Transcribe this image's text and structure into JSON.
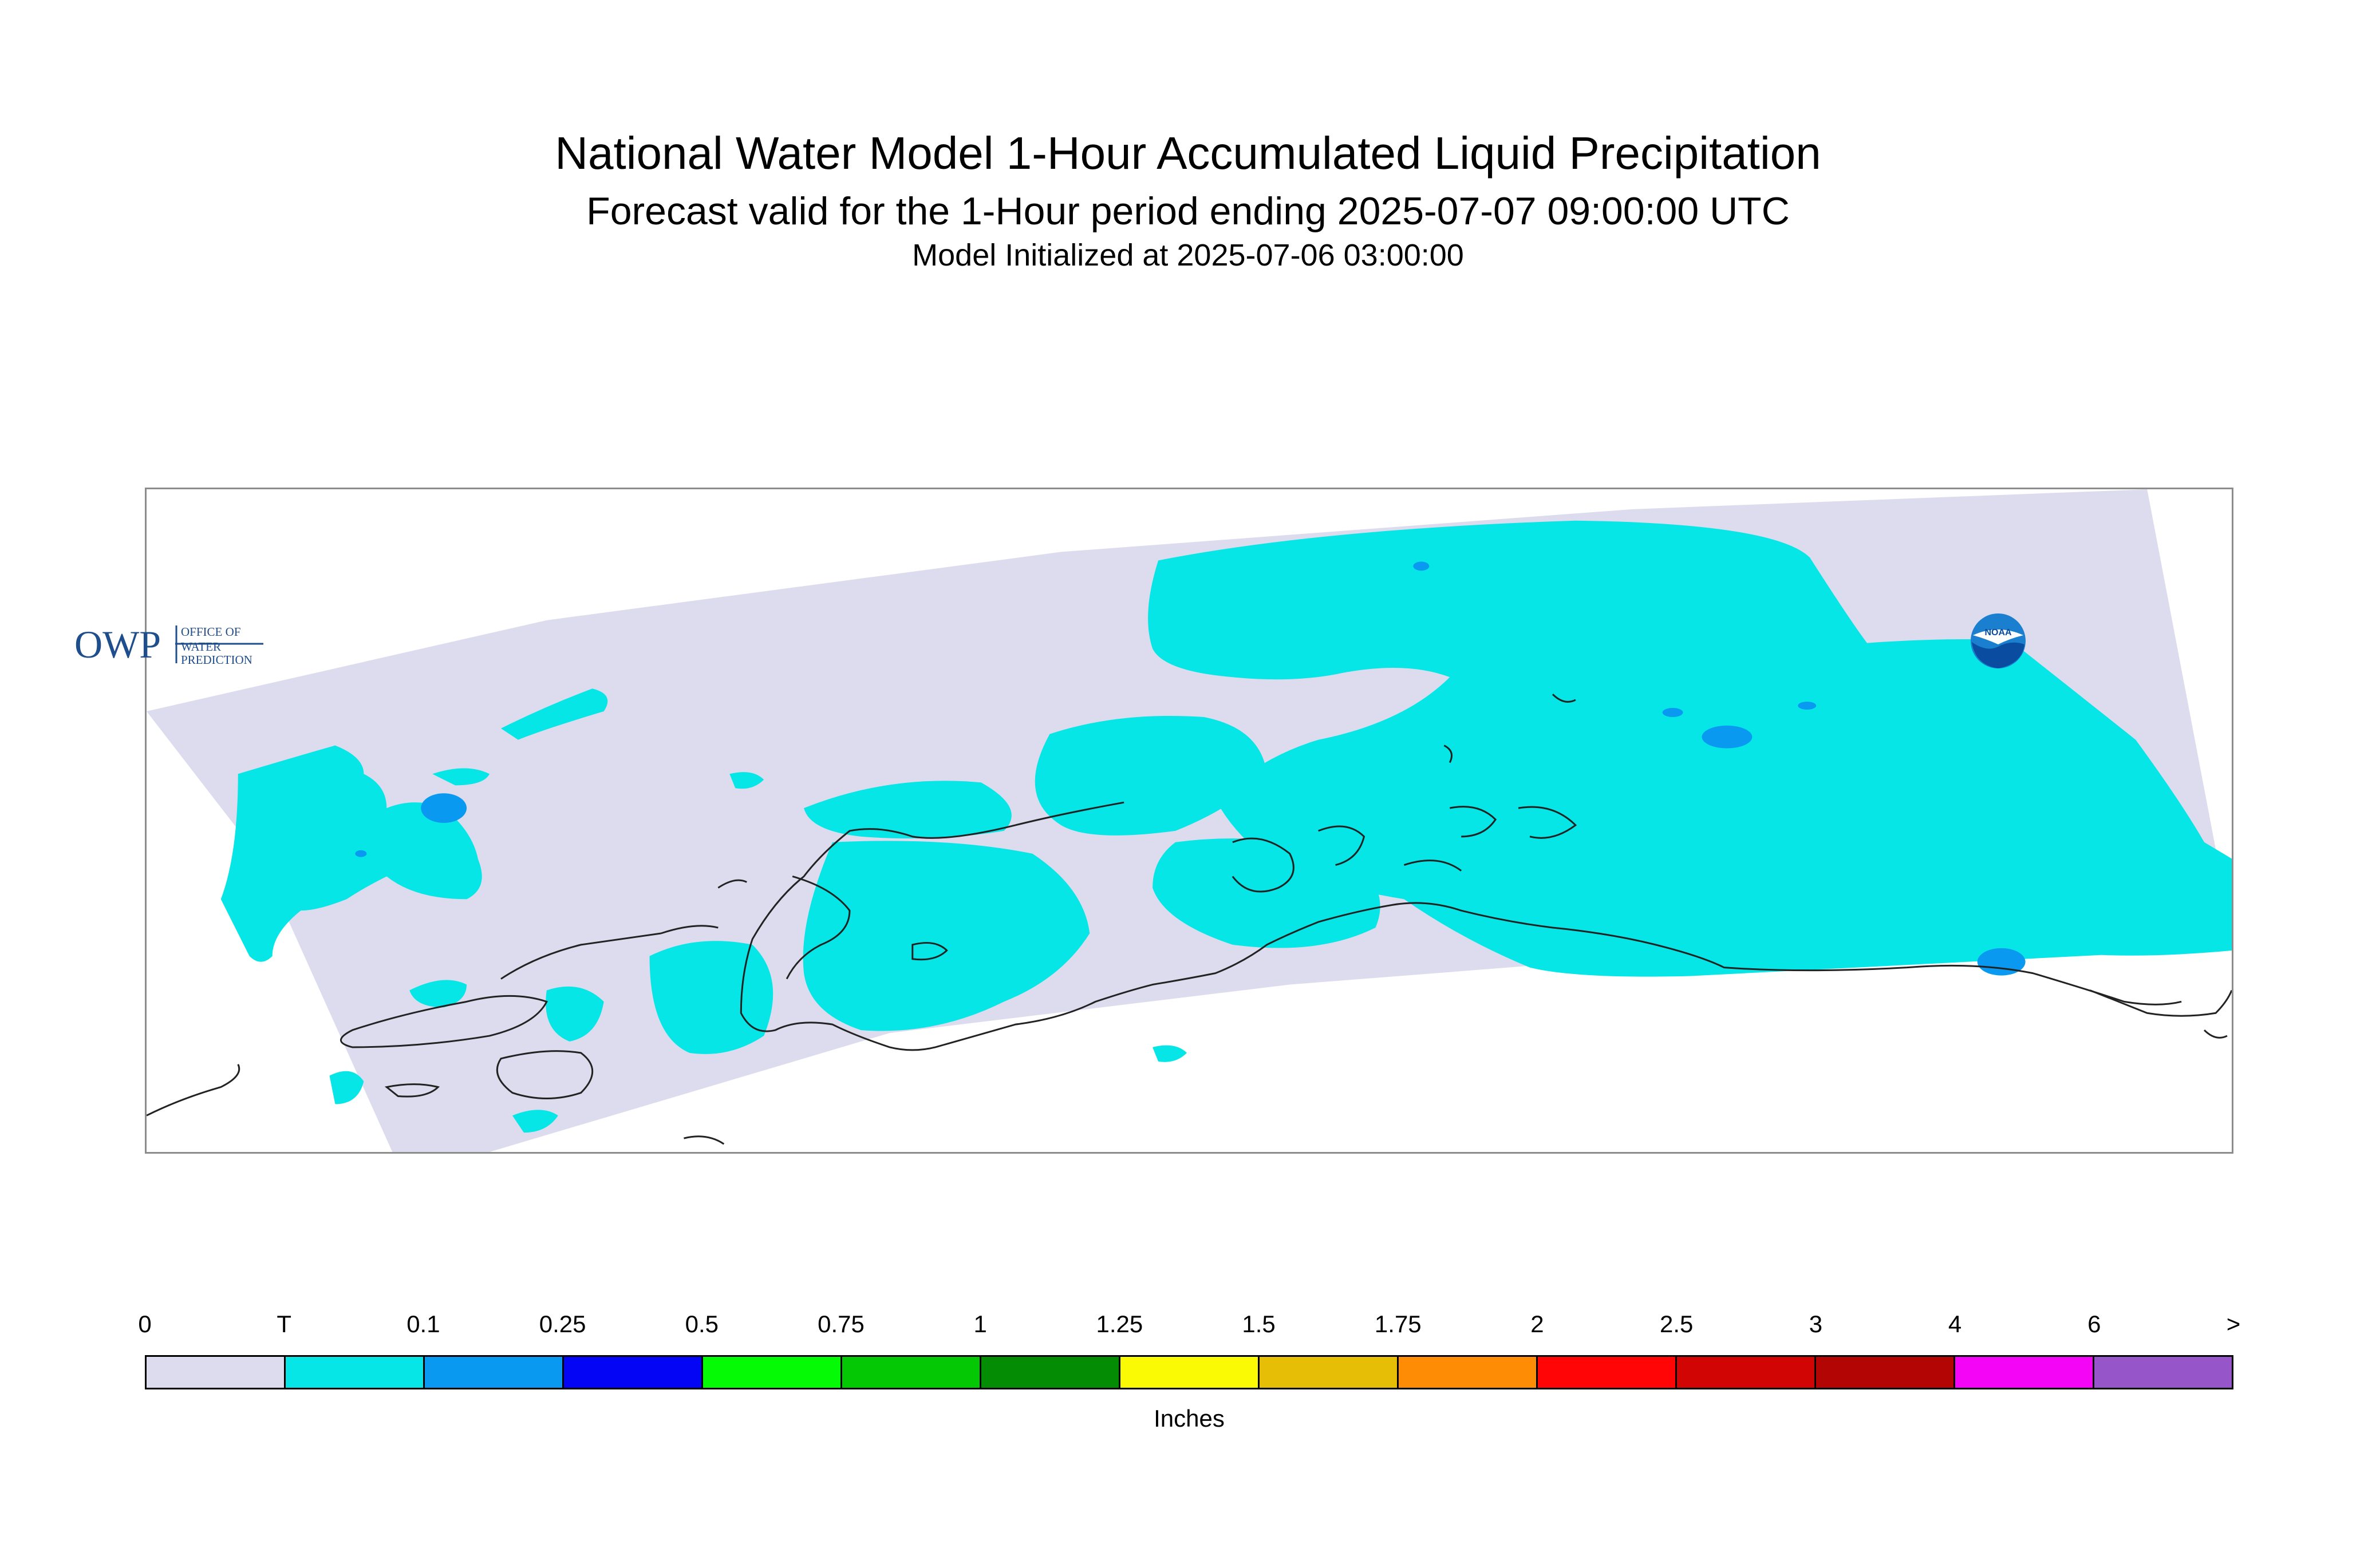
{
  "title": "National Water Model 1-Hour Accumulated Liquid Precipitation",
  "subtitle": "Forecast valid for the 1-Hour period ending 2025-07-07 09:00:00 UTC",
  "init_line": "Model Initialized at 2025-07-06 03:00:00",
  "logos": {
    "owp_letters": "OWP",
    "owp_line1": "OFFICE OF",
    "owp_line2": "WATER",
    "owp_line3": "PREDICTION",
    "noaa": "NOAA"
  },
  "colors": {
    "no_precip": "#dcdcee",
    "trace": "#06e6e6",
    "light": "#0a99f0",
    "coast": "#222222",
    "frame": "#8c8c8c"
  },
  "legend": {
    "units": "Inches",
    "tick_labels": [
      "0",
      "T",
      "0.1",
      "0.25",
      "0.5",
      "0.75",
      "1",
      "1.25",
      "1.5",
      "1.75",
      "2",
      "2.5",
      "3",
      "4",
      "6",
      ">"
    ],
    "colors": [
      "#dcdcee",
      "#06e6e6",
      "#0a99f0",
      "#0505f5",
      "#05fa05",
      "#05c805",
      "#058c05",
      "#fafa05",
      "#e6be05",
      "#ff8c05",
      "#ff0505",
      "#d20505",
      "#b40505",
      "#f505f5",
      "#9655c8"
    ]
  }
}
